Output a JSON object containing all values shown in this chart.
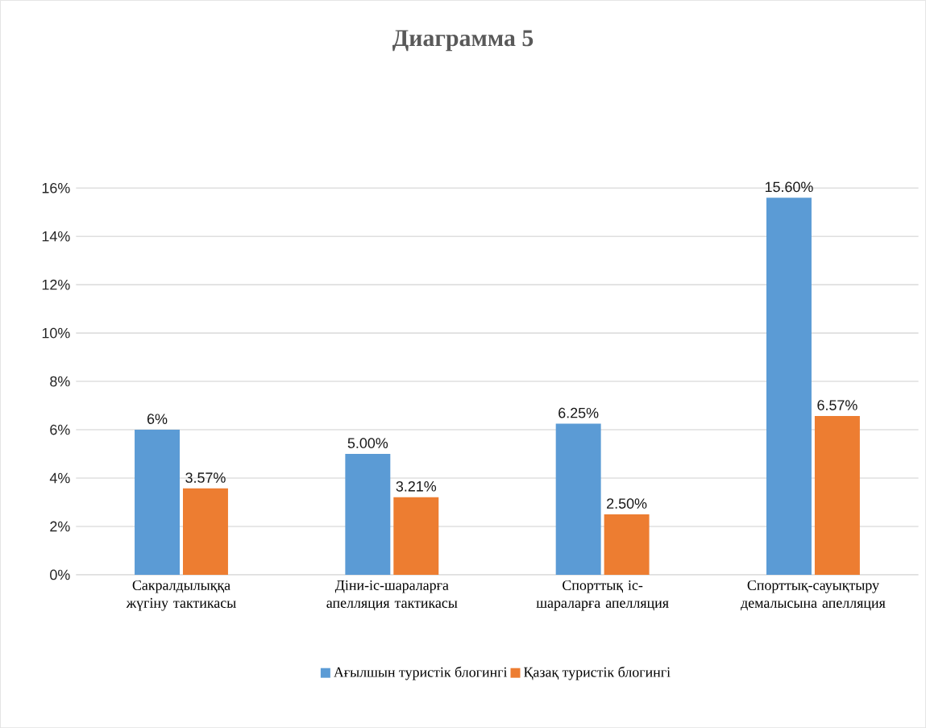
{
  "chart_data": {
    "type": "bar",
    "title": "Диаграмма 5",
    "categories": [
      "Сакралдылыққа жүгіну тактикасы",
      "Діни-іс-шараларға апелляция тактикасы",
      "Спорттық іс-шараларға апелляция",
      "Спорттық-сауықтыру демалысына апелляция"
    ],
    "series": [
      {
        "name": "Ағылшын туристік блогингі",
        "color": "#5b9bd5",
        "values": [
          6,
          5.0,
          6.25,
          15.6
        ],
        "value_labels": [
          "6%",
          "5.00%",
          "6.25%",
          "15.60%"
        ]
      },
      {
        "name": "Қазақ туристік блогингі",
        "color": "#ed7d31",
        "values": [
          3.57,
          3.21,
          2.5,
          6.57
        ],
        "value_labels": [
          "3.57%",
          "3.21%",
          "2.50%",
          "6.57%"
        ]
      }
    ],
    "ylim": [
      0,
      16
    ],
    "yticks": [
      {
        "value": 0,
        "label": "0%"
      },
      {
        "value": 2,
        "label": "2%"
      },
      {
        "value": 4,
        "label": "4%"
      },
      {
        "value": 6,
        "label": "6%"
      },
      {
        "value": 8,
        "label": "8%"
      },
      {
        "value": 10,
        "label": "10%"
      },
      {
        "value": 12,
        "label": "12%"
      },
      {
        "value": 14,
        "label": "14%"
      },
      {
        "value": 16,
        "label": "16%"
      }
    ],
    "grid": "y",
    "legend": "bottom"
  }
}
